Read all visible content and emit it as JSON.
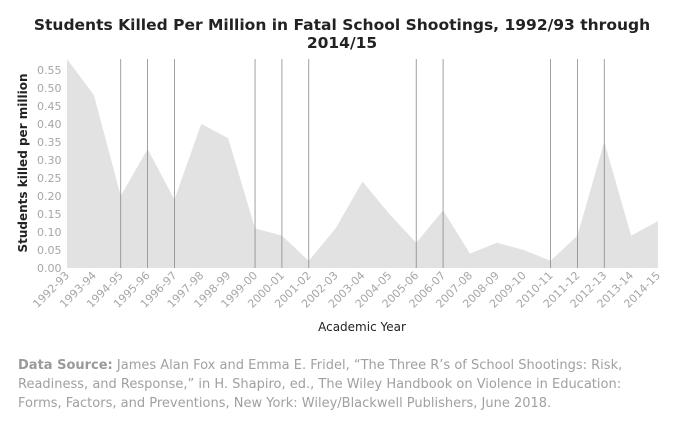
{
  "chart_data": {
    "type": "area",
    "title": "Students Killed Per Million in Fatal School Shootings, 1992/93 through 2014/15",
    "xlabel": "Academic Year",
    "ylabel": "Students killed per million",
    "ylim": [
      0,
      0.58
    ],
    "yticks": [
      "0.00",
      "0.05",
      "0.10",
      "0.15",
      "0.20",
      "0.25",
      "0.30",
      "0.35",
      "0.40",
      "0.45",
      "0.50",
      "0.55"
    ],
    "categories": [
      "1992-93",
      "1993-94",
      "1994-95",
      "1995-96",
      "1996-97",
      "1997-98",
      "1998-99",
      "1999-00",
      "2000-01",
      "2001-02",
      "2002-03",
      "2003-04",
      "2004-05",
      "2005-06",
      "2006-07",
      "2007-08",
      "2008-09",
      "2009-10",
      "2010-11",
      "2011-12",
      "2012-13",
      "2013-14",
      "2014-15"
    ],
    "values": [
      0.58,
      0.48,
      0.2,
      0.33,
      0.19,
      0.4,
      0.36,
      0.11,
      0.09,
      0.02,
      0.11,
      0.24,
      0.15,
      0.07,
      0.16,
      0.04,
      0.07,
      0.05,
      0.02,
      0.09,
      0.35,
      0.09,
      0.13
    ],
    "highlighted_years": [
      "1994-95",
      "1995-96",
      "1996-97",
      "1999-00",
      "2000-01",
      "2001-02",
      "2005-06",
      "2006-07",
      "2010-11",
      "2011-12",
      "2012-13"
    ],
    "fill_color": "#e2e2e2",
    "grid": false
  },
  "source": {
    "label": "Data Source:",
    "text": "James Alan Fox and Emma E. Fridel, “The Three R’s of School Shootings: Risk, Readiness, and Response,” in H. Shapiro, ed., The Wiley Handbook on Violence in Education: Forms, Factors, and Preventions, New York: Wiley/Blackwell Publishers, June 2018."
  }
}
